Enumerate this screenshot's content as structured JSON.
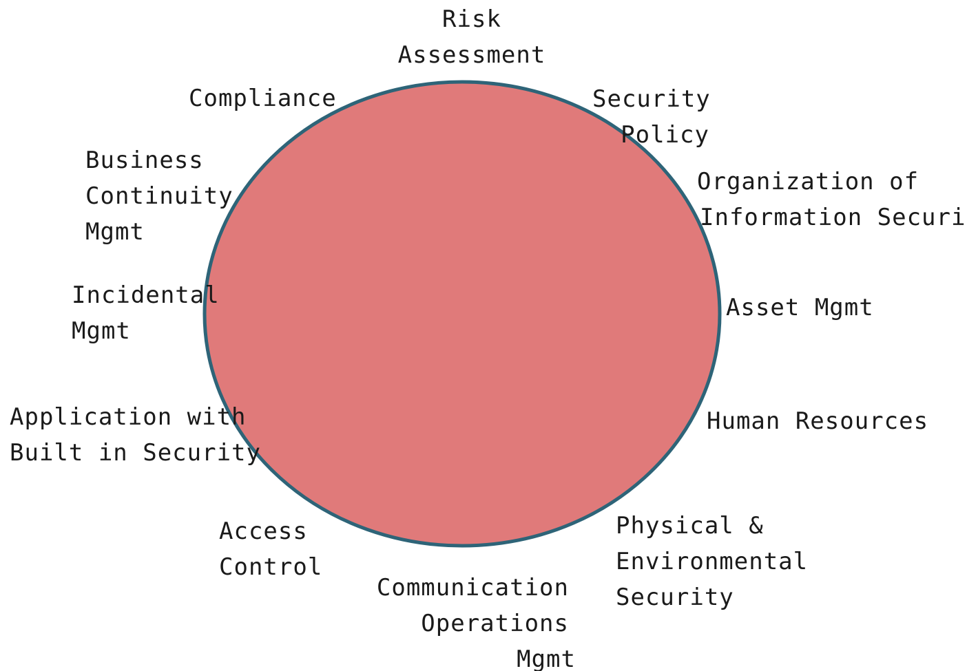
{
  "diagram": {
    "circle_fill": "#e07a7a",
    "circle_stroke": "#2e6478",
    "labels": {
      "risk_assessment": [
        "Risk",
        "Assessment"
      ],
      "security_policy": [
        "Security",
        "Policy"
      ],
      "org_info_security": [
        "Organization of",
        "Information Security"
      ],
      "asset_mgmt": [
        "Asset Mgmt"
      ],
      "human_resources": [
        "Human Resources"
      ],
      "physical_env_security": [
        "Physical &",
        "Environmental",
        "Security"
      ],
      "communication_ops_mgmt": [
        "Communication",
        "Operations",
        "Mgmt"
      ],
      "access_control": [
        "Access",
        "Control"
      ],
      "application_security": [
        "Application with",
        "Built in Security"
      ],
      "incidental_mgmt": [
        "Incidental",
        "Mgmt"
      ],
      "business_continuity_mgmt": [
        "Business",
        "Continuity",
        "Mgmt"
      ],
      "compliance": [
        "Compliance"
      ]
    }
  }
}
